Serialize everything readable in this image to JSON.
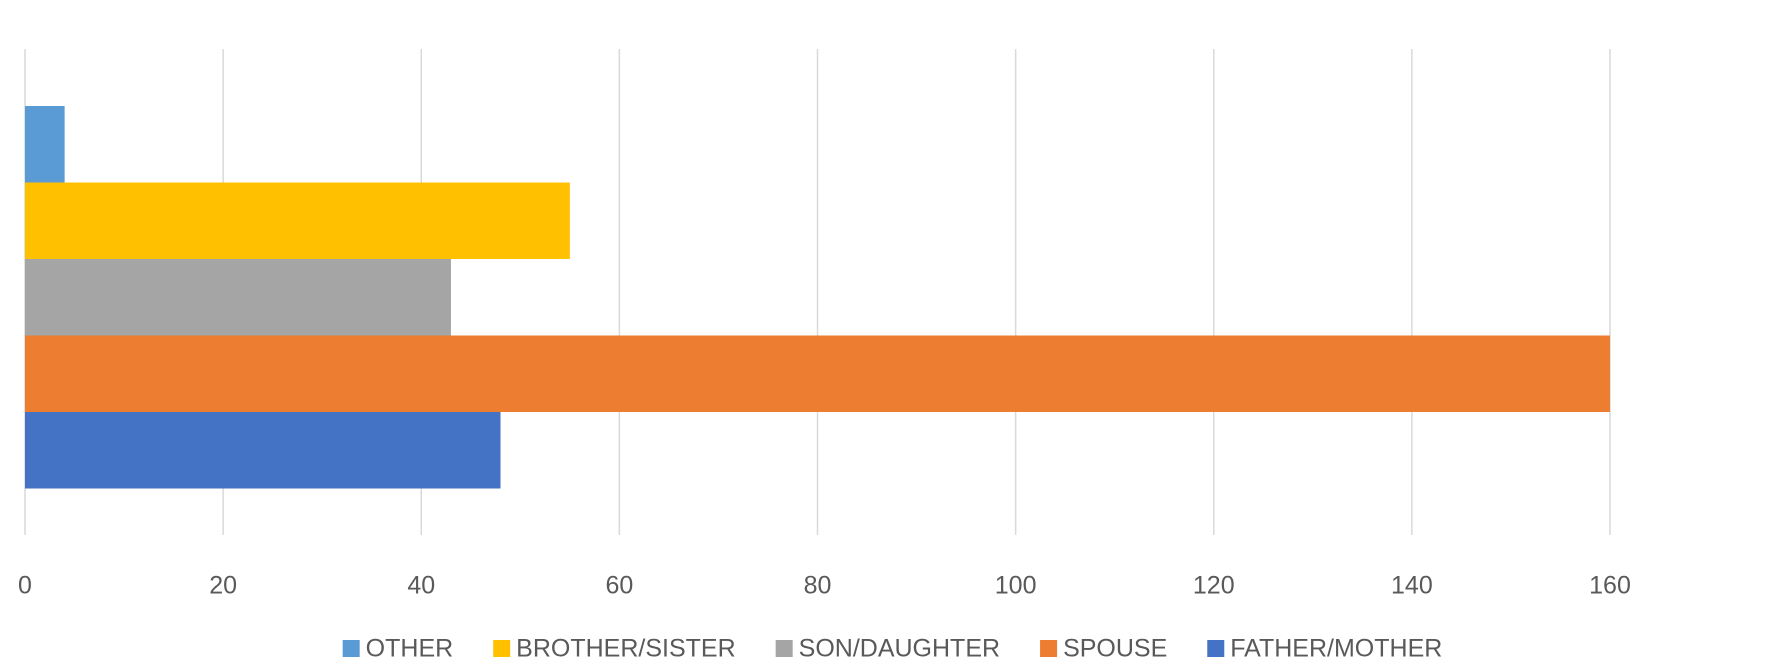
{
  "chart_data": {
    "type": "hbar",
    "categories": [
      null
    ],
    "series": [
      {
        "name": "OTHER",
        "color": "#5b9bd5",
        "values": [
          4
        ]
      },
      {
        "name": "BROTHER/SISTER",
        "color": "#ffc000",
        "values": [
          55
        ]
      },
      {
        "name": "SON/DAUGHTER",
        "color": "#a5a5a5",
        "values": [
          43
        ]
      },
      {
        "name": "SPOUSE",
        "color": "#ed7d31",
        "values": [
          160
        ]
      },
      {
        "name": "FATHER/MOTHER",
        "color": "#4472c4",
        "values": [
          48
        ]
      }
    ],
    "xlim": [
      0,
      160
    ],
    "xticks": [
      0,
      20,
      40,
      60,
      80,
      100,
      120,
      140,
      160
    ],
    "grid": true,
    "legend": "bottom"
  }
}
